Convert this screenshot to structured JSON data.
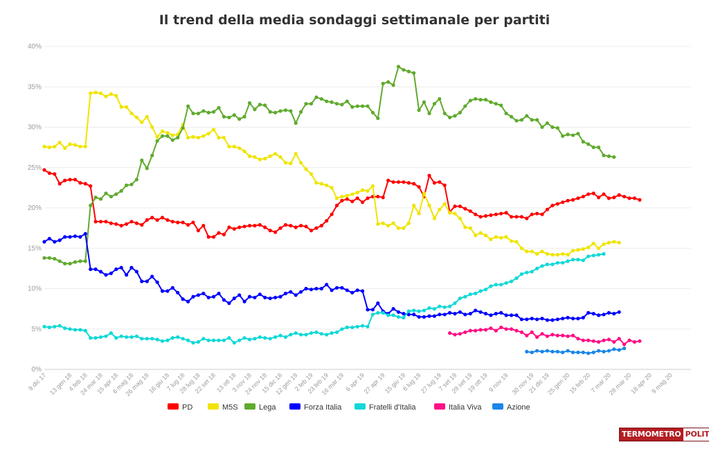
{
  "chart_data": {
    "type": "line",
    "title": "Il trend della media sondaggi settimanale per partiti",
    "ylim": [
      0,
      40
    ],
    "yticks": [
      "0%",
      "5%",
      "10%",
      "15%",
      "20%",
      "25%",
      "30%",
      "35%",
      "40%"
    ],
    "x_count": 127,
    "xticks": [
      {
        "i": 0,
        "label": "9 dic 17"
      },
      {
        "i": 5,
        "label": "13 gen 18"
      },
      {
        "i": 8,
        "label": "4 feb 18"
      },
      {
        "i": 11,
        "label": "24 mar 18"
      },
      {
        "i": 14,
        "label": "15 apr 18"
      },
      {
        "i": 17,
        "label": "6 mag 18"
      },
      {
        "i": 20,
        "label": "26 mag 18"
      },
      {
        "i": 24,
        "label": "16 giu 18"
      },
      {
        "i": 27,
        "label": "7 lug 18"
      },
      {
        "i": 30,
        "label": "28 lug 18"
      },
      {
        "i": 33,
        "label": "22 set 18"
      },
      {
        "i": 37,
        "label": "13 ott 18"
      },
      {
        "i": 40,
        "label": "3 nov 18"
      },
      {
        "i": 43,
        "label": "24 nov 18"
      },
      {
        "i": 46,
        "label": "15 dic 18"
      },
      {
        "i": 49,
        "label": "12 gen 19"
      },
      {
        "i": 52,
        "label": "2 feb 19"
      },
      {
        "i": 55,
        "label": "23 feb 19"
      },
      {
        "i": 58,
        "label": "16 mar 19"
      },
      {
        "i": 62,
        "label": "6 apr 19"
      },
      {
        "i": 66,
        "label": "27 apr 19"
      },
      {
        "i": 70,
        "label": "15 giu 19"
      },
      {
        "i": 73,
        "label": "6 lug 19"
      },
      {
        "i": 77,
        "label": "27 lug 19"
      },
      {
        "i": 80,
        "label": "7 set 19"
      },
      {
        "i": 83,
        "label": "29 set 19"
      },
      {
        "i": 86,
        "label": "19 ott 19"
      },
      {
        "i": 90,
        "label": "9 nov 19"
      },
      {
        "i": 95,
        "label": "30 nov 19"
      },
      {
        "i": 98,
        "label": "21 dic 19"
      },
      {
        "i": 102,
        "label": "25 gen 20"
      },
      {
        "i": 106,
        "label": "15 feb 20"
      },
      {
        "i": 110,
        "label": "7 mar 20"
      },
      {
        "i": 114,
        "label": "28 mar 20"
      },
      {
        "i": 118,
        "label": "18 apr 20"
      },
      {
        "i": 122,
        "label": "9 mag 20"
      }
    ],
    "series": [
      {
        "name": "PD",
        "color": "#ff0000",
        "start": 0,
        "values": [
          24.7,
          24.3,
          24.2,
          23.0,
          23.4,
          23.5,
          23.5,
          23.1,
          23.0,
          22.7,
          18.3,
          18.3,
          18.3,
          18.1,
          18.0,
          17.8,
          18.0,
          18.3,
          18.1,
          17.9,
          18.5,
          18.8,
          18.5,
          18.8,
          18.5,
          18.3,
          18.2,
          18.2,
          17.9,
          18.2,
          17.2,
          17.8,
          16.4,
          16.4,
          16.9,
          16.7,
          17.6,
          17.4,
          17.6,
          17.7,
          17.8,
          17.8,
          17.9,
          17.6,
          17.2,
          17.0,
          17.5,
          17.9,
          17.8,
          17.6,
          17.8,
          17.7,
          17.2,
          17.5,
          17.8,
          18.4,
          19.2,
          20.3,
          20.9,
          21.1,
          20.8,
          21.2,
          20.7,
          21.2,
          21.4,
          21.4,
          21.3,
          23.4,
          23.2,
          23.2,
          23.2,
          23.1,
          23.0,
          22.6,
          21.4,
          24.0,
          23.1,
          23.2,
          22.8,
          19.5,
          20.2,
          20.2,
          19.9,
          19.6,
          19.2,
          18.9,
          19.0,
          19.1,
          19.2,
          19.3,
          19.4,
          18.9,
          18.9,
          18.9,
          18.7,
          19.2,
          19.3,
          19.2,
          19.8,
          20.3,
          20.5,
          20.7,
          20.9,
          21.0,
          21.2,
          21.4,
          21.7,
          21.8,
          21.3,
          21.7,
          21.2,
          21.3,
          21.6,
          21.4,
          21.2,
          21.2,
          21.0
        ]
      },
      {
        "name": "M5S",
        "color": "#f0e400",
        "start": 0,
        "values": [
          27.6,
          27.5,
          27.6,
          28.1,
          27.4,
          27.9,
          27.8,
          27.6,
          27.6,
          34.2,
          34.3,
          34.2,
          33.8,
          34.1,
          33.9,
          32.5,
          32.5,
          31.7,
          31.2,
          30.6,
          31.3,
          30.0,
          28.8,
          29.5,
          29.3,
          29.0,
          29.1,
          30.3,
          28.7,
          28.8,
          28.7,
          28.9,
          29.2,
          29.7,
          28.7,
          28.7,
          27.6,
          27.6,
          27.4,
          27.0,
          26.4,
          26.3,
          26.0,
          26.1,
          26.4,
          26.7,
          26.3,
          25.6,
          25.5,
          26.7,
          25.6,
          24.8,
          24.2,
          23.1,
          23.0,
          22.8,
          22.5,
          21.2,
          21.4,
          21.5,
          21.7,
          21.9,
          22.2,
          22.1,
          22.7,
          18.0,
          18.1,
          17.8,
          18.1,
          17.5,
          17.5,
          18.1,
          20.3,
          19.3,
          21.8,
          20.3,
          18.7,
          19.8,
          20.5,
          19.4,
          19.3,
          18.7,
          17.6,
          17.5,
          16.6,
          16.9,
          16.6,
          16.1,
          16.4,
          16.3,
          16.4,
          15.9,
          15.8,
          15.0,
          14.6,
          14.6,
          14.3,
          14.6,
          14.3,
          14.2,
          14.2,
          14.3,
          14.2,
          14.7,
          14.8,
          14.9,
          15.1,
          15.6,
          15.0,
          15.5,
          15.7,
          15.8,
          15.7
        ]
      },
      {
        "name": "Lega",
        "color": "#5faa2d",
        "start": 0,
        "values": [
          13.8,
          13.8,
          13.7,
          13.4,
          13.1,
          13.1,
          13.3,
          13.4,
          13.4,
          20.3,
          21.3,
          21.1,
          21.8,
          21.4,
          21.7,
          22.1,
          22.8,
          22.9,
          23.5,
          25.9,
          24.9,
          26.5,
          28.3,
          28.9,
          28.9,
          28.4,
          28.7,
          29.9,
          32.6,
          31.7,
          31.7,
          32.0,
          31.8,
          31.9,
          32.4,
          31.3,
          31.2,
          31.5,
          31.0,
          31.3,
          33.0,
          32.2,
          32.8,
          32.7,
          31.9,
          31.8,
          32.0,
          32.1,
          32.0,
          30.5,
          31.9,
          32.9,
          32.9,
          33.7,
          33.5,
          33.2,
          33.1,
          32.9,
          32.8,
          33.2,
          32.5,
          32.6,
          32.6,
          32.6,
          31.8,
          31.1,
          35.4,
          35.6,
          35.2,
          37.5,
          37.1,
          36.9,
          36.7,
          32.1,
          33.1,
          31.7,
          32.9,
          33.5,
          31.7,
          31.2,
          31.4,
          31.8,
          32.6,
          33.3,
          33.5,
          33.4,
          33.4,
          33.1,
          32.9,
          32.7,
          31.7,
          31.3,
          30.8,
          30.9,
          31.4,
          30.9,
          30.9,
          30.0,
          30.5,
          30.0,
          29.9,
          28.9,
          29.1,
          29.0,
          29.2,
          28.2,
          27.9,
          27.5,
          27.5,
          26.5,
          26.4,
          26.3
        ]
      },
      {
        "name": "Forza Italia",
        "color": "#0000ff",
        "start": 0,
        "values": [
          15.8,
          16.2,
          15.8,
          16.0,
          16.4,
          16.4,
          16.5,
          16.4,
          16.8,
          12.4,
          12.4,
          12.1,
          11.7,
          11.9,
          12.4,
          12.6,
          11.7,
          12.6,
          12.1,
          10.9,
          10.9,
          11.5,
          10.8,
          9.7,
          9.7,
          10.1,
          9.5,
          8.7,
          8.4,
          9.0,
          9.2,
          9.4,
          8.9,
          9.0,
          9.4,
          8.6,
          8.2,
          8.8,
          9.2,
          8.4,
          9.0,
          8.9,
          9.3,
          8.9,
          8.8,
          8.9,
          9.0,
          9.4,
          9.6,
          9.2,
          9.6,
          10.0,
          9.9,
          10.0,
          10.0,
          10.5,
          9.8,
          10.1,
          10.1,
          9.8,
          9.5,
          9.8,
          9.7,
          7.4,
          7.4,
          8.2,
          7.2,
          6.9,
          7.5,
          7.1,
          6.9,
          6.8,
          6.8,
          6.5,
          6.5,
          6.6,
          6.6,
          6.8,
          6.8,
          7.0,
          6.9,
          7.1,
          6.8,
          6.9,
          7.3,
          7.1,
          6.9,
          6.7,
          6.9,
          7.0,
          6.7,
          6.7,
          6.7,
          6.2,
          6.2,
          6.3,
          6.2,
          6.3,
          6.1,
          6.1,
          6.2,
          6.3,
          6.4,
          6.3,
          6.3,
          6.4,
          7.0,
          6.9,
          6.7,
          6.8,
          7.0,
          6.9,
          7.1
        ]
      },
      {
        "name": "Fratelli d'Italia",
        "color": "#12d8d8",
        "start": 0,
        "values": [
          5.3,
          5.2,
          5.3,
          5.4,
          5.1,
          5.0,
          4.9,
          4.9,
          4.8,
          3.9,
          3.9,
          4.0,
          4.1,
          4.5,
          3.9,
          4.1,
          4.0,
          4.0,
          4.1,
          3.8,
          3.8,
          3.8,
          3.7,
          3.5,
          3.6,
          3.9,
          4.0,
          3.8,
          3.6,
          3.3,
          3.4,
          3.8,
          3.6,
          3.6,
          3.6,
          3.6,
          3.9,
          3.3,
          3.6,
          3.9,
          3.7,
          3.8,
          4.0,
          3.9,
          3.8,
          4.0,
          4.2,
          4.0,
          4.3,
          4.5,
          4.3,
          4.3,
          4.5,
          4.6,
          4.4,
          4.3,
          4.5,
          4.6,
          5.0,
          5.2,
          5.2,
          5.3,
          5.4,
          5.3,
          6.8,
          7.0,
          7.0,
          6.7,
          6.7,
          6.5,
          6.4,
          7.2,
          7.3,
          7.2,
          7.3,
          7.6,
          7.5,
          7.8,
          7.7,
          7.8,
          8.2,
          8.8,
          9.0,
          9.3,
          9.4,
          9.7,
          9.9,
          10.3,
          10.5,
          10.5,
          10.7,
          10.9,
          11.3,
          11.8,
          12.0,
          12.1,
          12.5,
          12.8,
          13.0,
          13.0,
          13.2,
          13.2,
          13.4,
          13.6,
          13.6,
          13.5,
          14.0,
          14.1,
          14.2,
          14.3
        ]
      },
      {
        "name": "Italia Viva",
        "color": "#ff0f85",
        "start": 79,
        "values": [
          4.5,
          4.3,
          4.4,
          4.6,
          4.8,
          4.8,
          4.9,
          4.9,
          5.1,
          4.8,
          5.2,
          5.0,
          5.0,
          4.8,
          4.6,
          4.2,
          4.6,
          4.0,
          4.4,
          4.1,
          4.3,
          4.2,
          4.2,
          4.1,
          4.2,
          3.8,
          3.6,
          3.6,
          3.5,
          3.4,
          3.6,
          3.7,
          3.4,
          3.8,
          3.1,
          3.6,
          3.4,
          3.5
        ]
      },
      {
        "name": "Azione",
        "color": "#1a86e8",
        "start": 94,
        "values": [
          2.2,
          2.1,
          2.3,
          2.2,
          2.3,
          2.2,
          2.2,
          2.1,
          2.3,
          2.1,
          2.1,
          2.1,
          2.0,
          2.1,
          2.3,
          2.2,
          2.3,
          2.5,
          2.4,
          2.6
        ]
      }
    ]
  },
  "brand": {
    "part1": "TERMOMETRO",
    "part2": "POLITICO"
  }
}
